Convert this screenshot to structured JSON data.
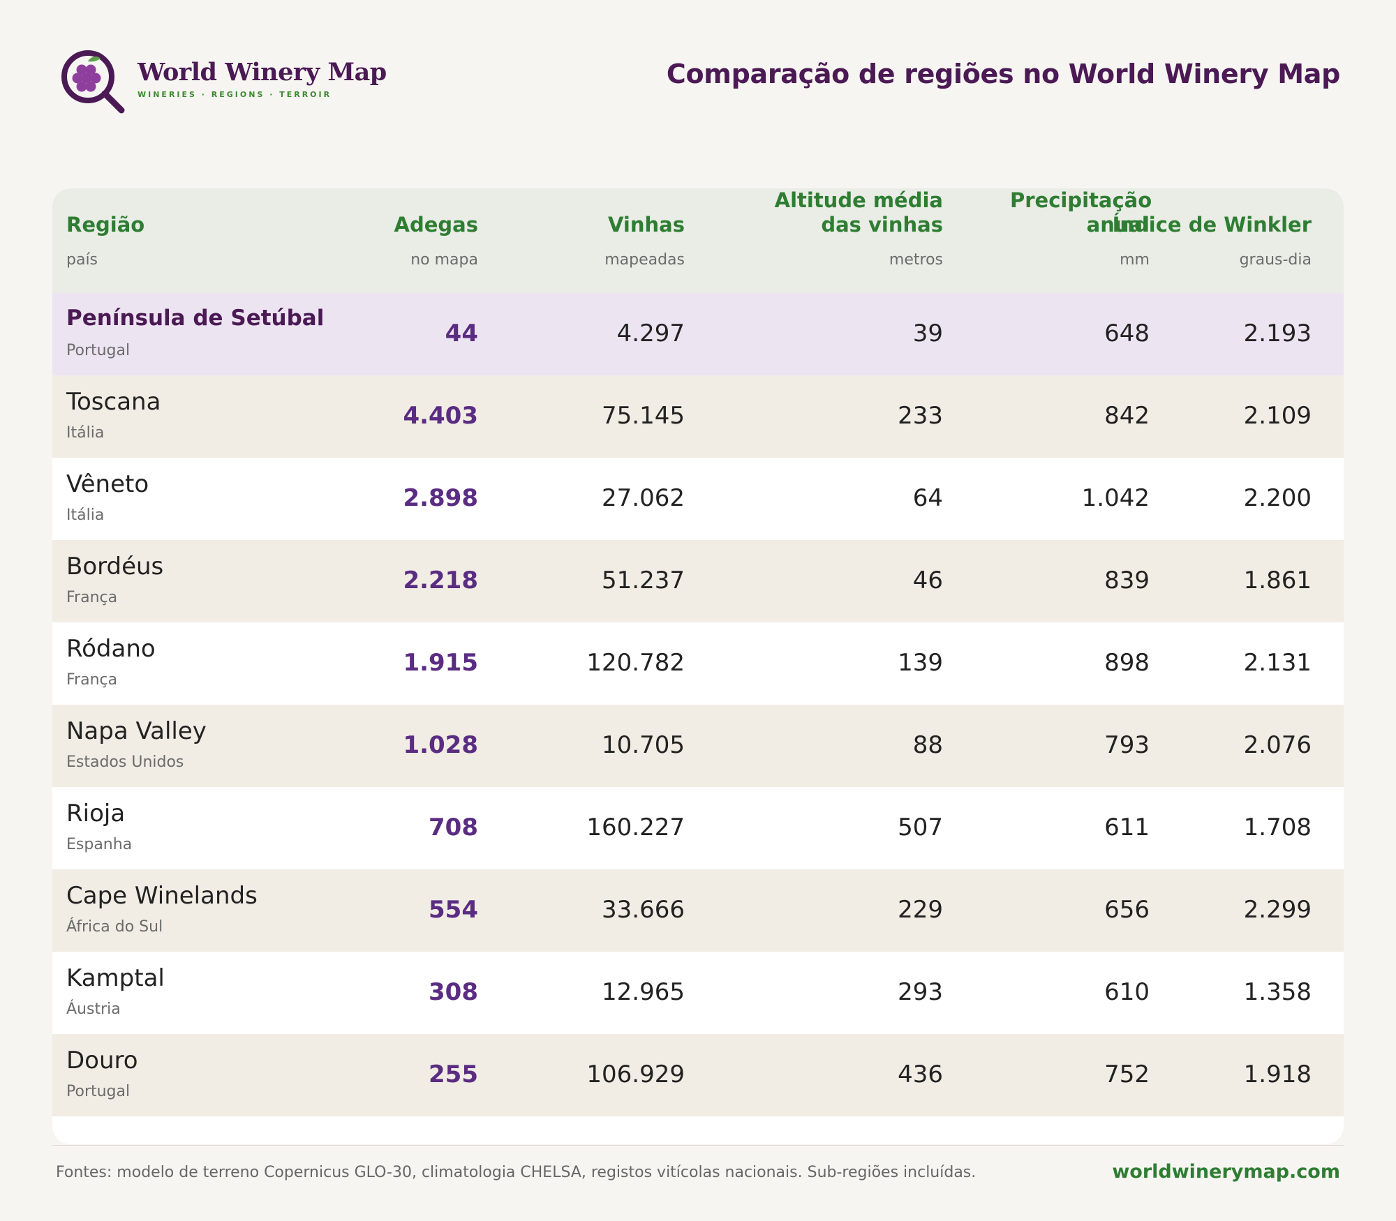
{
  "brand": {
    "name": "World Winery Map",
    "tagline": "WINERIES · REGIONS · TERROIR"
  },
  "page_title": "Comparação de regiões no World Winery Map",
  "table": {
    "columns": [
      {
        "label": "Região",
        "sub": "país"
      },
      {
        "label": "Adegas",
        "sub": "no mapa"
      },
      {
        "label": "Vinhas",
        "sub": "mapeadas"
      },
      {
        "label": "Altitude média das vinhas",
        "sub": "metros"
      },
      {
        "label": "Precipitação anual",
        "sub": "mm"
      },
      {
        "label": "Índice de Winkler",
        "sub": "graus-dia"
      }
    ],
    "rows": [
      {
        "region": "Península de Setúbal",
        "country": "Portugal",
        "wineries": "44",
        "vineyards": "4.297",
        "altitude": "39",
        "precip": "648",
        "winkler": "2.193"
      },
      {
        "region": "Toscana",
        "country": "Itália",
        "wineries": "4.403",
        "vineyards": "75.145",
        "altitude": "233",
        "precip": "842",
        "winkler": "2.109"
      },
      {
        "region": "Vêneto",
        "country": "Itália",
        "wineries": "2.898",
        "vineyards": "27.062",
        "altitude": "64",
        "precip": "1.042",
        "winkler": "2.200"
      },
      {
        "region": "Bordéus",
        "country": "França",
        "wineries": "2.218",
        "vineyards": "51.237",
        "altitude": "46",
        "precip": "839",
        "winkler": "1.861"
      },
      {
        "region": "Ródano",
        "country": "França",
        "wineries": "1.915",
        "vineyards": "120.782",
        "altitude": "139",
        "precip": "898",
        "winkler": "2.131"
      },
      {
        "region": "Napa Valley",
        "country": "Estados Unidos",
        "wineries": "1.028",
        "vineyards": "10.705",
        "altitude": "88",
        "precip": "793",
        "winkler": "2.076"
      },
      {
        "region": "Rioja",
        "country": "Espanha",
        "wineries": "708",
        "vineyards": "160.227",
        "altitude": "507",
        "precip": "611",
        "winkler": "1.708"
      },
      {
        "region": "Cape Winelands",
        "country": "África do Sul",
        "wineries": "554",
        "vineyards": "33.666",
        "altitude": "229",
        "precip": "656",
        "winkler": "2.299"
      },
      {
        "region": "Kamptal",
        "country": "Áustria",
        "wineries": "308",
        "vineyards": "12.965",
        "altitude": "293",
        "precip": "610",
        "winkler": "1.358"
      },
      {
        "region": "Douro",
        "country": "Portugal",
        "wineries": "255",
        "vineyards": "106.929",
        "altitude": "436",
        "precip": "752",
        "winkler": "1.918"
      }
    ]
  },
  "footer": {
    "sources": "Fontes: modelo de terreno Copernicus GLO-30, climatologia CHELSA, registos vitícolas nacionais. Sub-regiões incluídas.",
    "site": "worldwinerymap.com"
  },
  "colors": {
    "brand_purple": "#4b1a55",
    "accent_green": "#2e7d32",
    "highlight_row": "#ede4f2",
    "alt_row": "#f1ede4",
    "header_bg": "#e9ede6",
    "winery_value": "#5a2c82"
  }
}
